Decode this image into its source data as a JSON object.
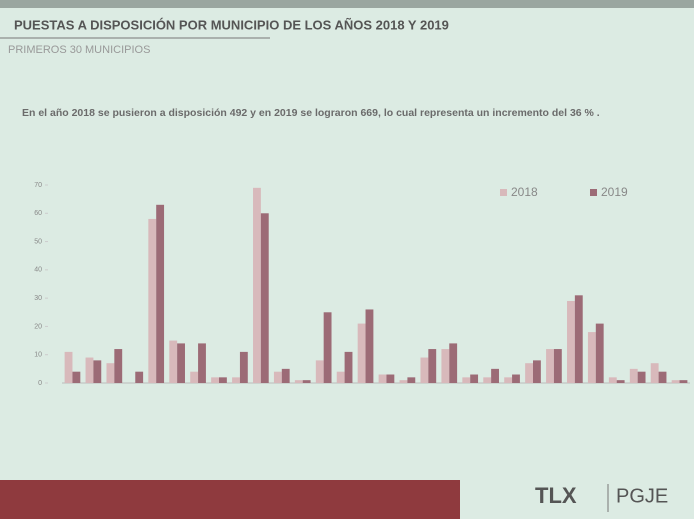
{
  "header": {
    "title": "PUESTAS A DISPOSICIÓN POR MUNICIPIO DE LOS AÑOS 2018 Y 2019",
    "subtitle": "PRIMEROS 30 MUNICIPIOS"
  },
  "intro": "En el año 2018 se pusieron a disposición 492 y en 2019 se lograron 669, lo cual representa un incremento del 36 % .",
  "chart_data": {
    "type": "bar",
    "categories": [
      null,
      null,
      null,
      null,
      null,
      null,
      null,
      null,
      null,
      null,
      null,
      null,
      null,
      null,
      null,
      null,
      null,
      null,
      null,
      null,
      null,
      null,
      null,
      null,
      null,
      null,
      null,
      null,
      null,
      null
    ],
    "series": [
      {
        "name": "2018",
        "color": "#d8b9bb",
        "values": [
          11,
          9,
          7,
          0,
          58,
          15,
          4,
          2,
          2,
          69,
          4,
          1,
          8,
          4,
          21,
          3,
          1,
          9,
          12,
          2,
          2,
          2,
          7,
          12,
          29,
          18,
          2,
          5,
          7,
          1
        ]
      },
      {
        "name": "2019",
        "color": "#9c6b76",
        "values": [
          4,
          8,
          12,
          4,
          63,
          14,
          14,
          2,
          11,
          60,
          5,
          1,
          25,
          11,
          26,
          3,
          2,
          12,
          14,
          3,
          5,
          3,
          8,
          12,
          31,
          21,
          1,
          4,
          4,
          1
        ]
      }
    ],
    "ylim": [
      0,
      70
    ],
    "yticks": [
      0,
      10,
      20,
      30,
      40,
      50,
      60,
      70
    ],
    "grid": false,
    "legend": "top-right"
  },
  "footer": {
    "logo1": "TLX",
    "logo2": "PGJE"
  }
}
